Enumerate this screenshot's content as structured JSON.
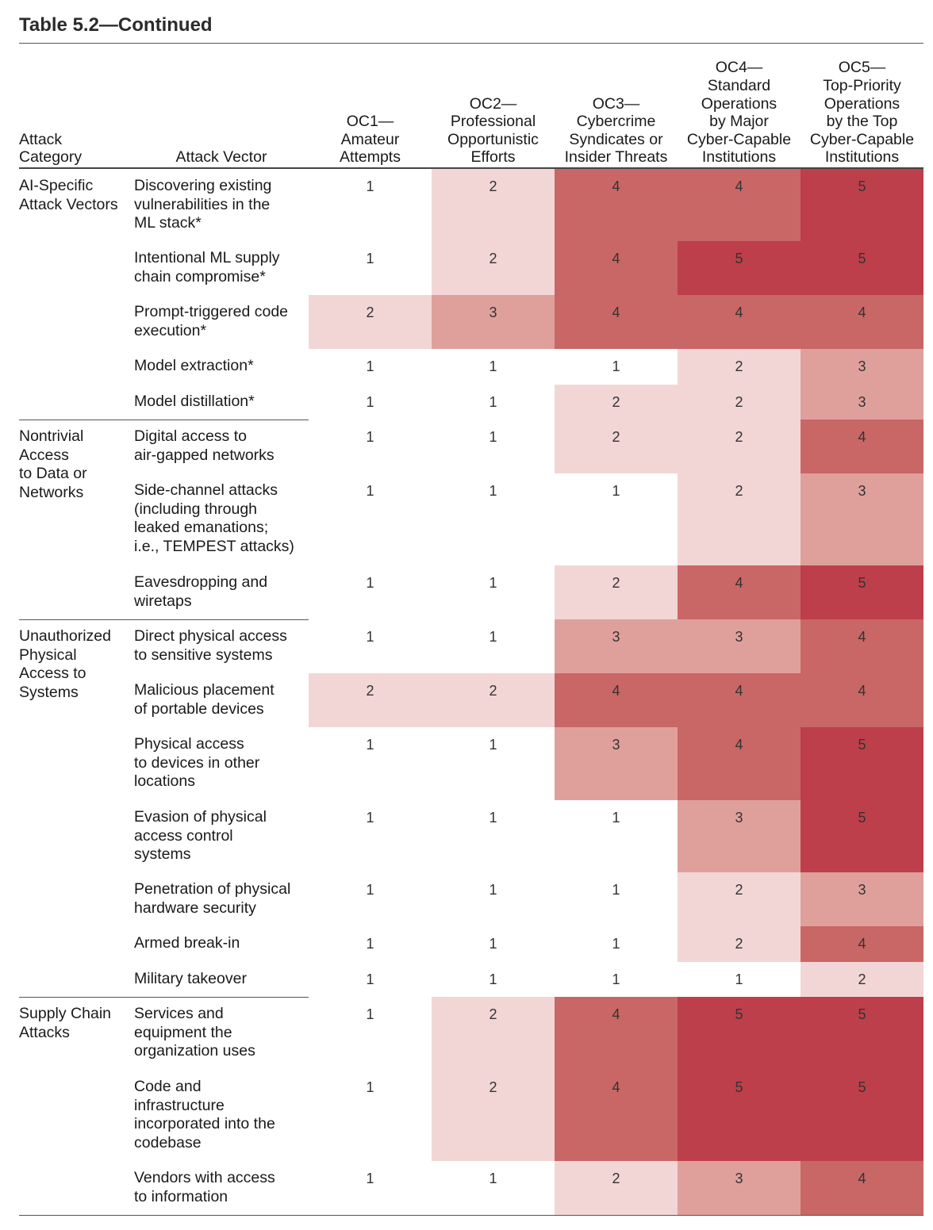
{
  "title": "Table 5.2—Continued",
  "headers": {
    "category": "Attack\nCategory",
    "vector": "Attack Vector",
    "oc": [
      "OC1—\nAmateur\nAttempts",
      "OC2—\nProfessional\nOpportunistic\nEfforts",
      "OC3—\nCybercrime\nSyndicates or\nInsider Threats",
      "OC4—\nStandard\nOperations\nby Major\nCyber-Capable\nInstitutions",
      "OC5—\nTop-Priority\nOperations\nby the Top\nCyber-Capable\nInstitutions"
    ]
  },
  "shade_colors": {
    "1": "#ffffff",
    "2": "#f2d6d5",
    "3": "#dfa09c",
    "4": "#c96666",
    "5": "#bd3f4b"
  },
  "groups": [
    {
      "category": "AI-Specific\nAttack Vectors",
      "rows": [
        {
          "vector": "Discovering existing\nvulnerabilities in the\nML stack*",
          "values": [
            1,
            2,
            4,
            4,
            5
          ]
        },
        {
          "vector": "Intentional ML supply\nchain compromise*",
          "values": [
            1,
            2,
            4,
            5,
            5
          ]
        },
        {
          "vector": "Prompt-triggered code\nexecution*",
          "values": [
            2,
            3,
            4,
            4,
            4
          ]
        },
        {
          "vector": "Model extraction*",
          "values": [
            1,
            1,
            1,
            2,
            3
          ]
        },
        {
          "vector": "Model distillation*",
          "values": [
            1,
            1,
            2,
            2,
            3
          ]
        }
      ]
    },
    {
      "category": "Nontrivial\nAccess\nto Data or\nNetworks",
      "rows": [
        {
          "vector": "Digital access to\nair-gapped networks",
          "values": [
            1,
            1,
            2,
            2,
            4
          ]
        },
        {
          "vector": "Side-channel attacks\n(including through\nleaked emanations;\ni.e., TEMPEST attacks)",
          "values": [
            1,
            1,
            1,
            2,
            3
          ]
        },
        {
          "vector": "Eavesdropping and\nwiretaps",
          "values": [
            1,
            1,
            2,
            4,
            5
          ]
        }
      ]
    },
    {
      "category": "Unauthorized\nPhysical\nAccess to\nSystems",
      "rows": [
        {
          "vector": "Direct physical access\nto sensitive systems",
          "values": [
            1,
            1,
            3,
            3,
            4
          ]
        },
        {
          "vector": "Malicious placement\nof portable devices",
          "values": [
            2,
            2,
            4,
            4,
            4
          ]
        },
        {
          "vector": "Physical access\nto devices in other\nlocations",
          "values": [
            1,
            1,
            3,
            4,
            5
          ]
        },
        {
          "vector": "Evasion of physical\naccess control\nsystems",
          "values": [
            1,
            1,
            1,
            3,
            5
          ]
        },
        {
          "vector": "Penetration of physical\nhardware security",
          "values": [
            1,
            1,
            1,
            2,
            3
          ]
        },
        {
          "vector": "Armed break-in",
          "values": [
            1,
            1,
            1,
            2,
            4
          ]
        },
        {
          "vector": "Military takeover",
          "values": [
            1,
            1,
            1,
            1,
            2
          ]
        }
      ]
    },
    {
      "category": "Supply Chain\nAttacks",
      "rows": [
        {
          "vector": "Services and\nequipment the\norganization uses",
          "values": [
            1,
            2,
            4,
            5,
            5
          ]
        },
        {
          "vector": "Code and\ninfrastructure\nincorporated into the\ncodebase",
          "values": [
            1,
            2,
            4,
            5,
            5
          ]
        },
        {
          "vector": "Vendors with access\nto information",
          "values": [
            1,
            1,
            2,
            3,
            4
          ]
        }
      ]
    }
  ]
}
